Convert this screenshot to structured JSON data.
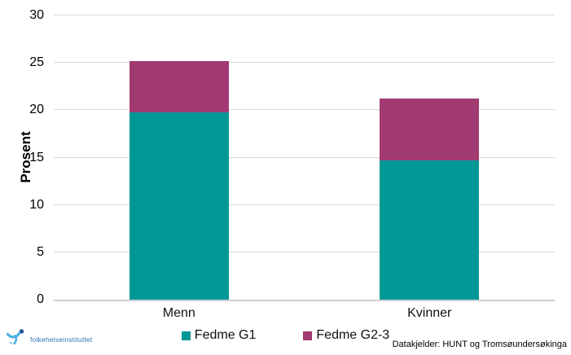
{
  "chart_data": {
    "type": "bar",
    "stacked": true,
    "title": "",
    "ylabel": "Prosent",
    "xlabel": "",
    "ylim": [
      0,
      30
    ],
    "yticks": [
      0,
      5,
      10,
      15,
      20,
      25,
      30
    ],
    "grid": true,
    "legend_position": "bottom",
    "categories": [
      "Menn",
      "Kvinner"
    ],
    "series": [
      {
        "name": "Fedme G1",
        "color": "#009797",
        "values": [
          19.8,
          14.7
        ]
      },
      {
        "name": "Fedme G2-3",
        "color": "#A23A72",
        "values": [
          5.4,
          6.5
        ]
      }
    ],
    "totals": [
      25.2,
      21.2
    ]
  },
  "footer": {
    "source": "Datakjelder: HUNT og Tromsøundersøkinga"
  },
  "logo": {
    "text": "folkehelseinstituttet"
  },
  "colors": {
    "gridline": "#d9d9d9",
    "axis_line": "#cfcfcf",
    "text": "#000000",
    "logo_text": "#2e75b6",
    "logo_icon_light": "#4fb0e1",
    "logo_icon_dark": "#24549c"
  }
}
